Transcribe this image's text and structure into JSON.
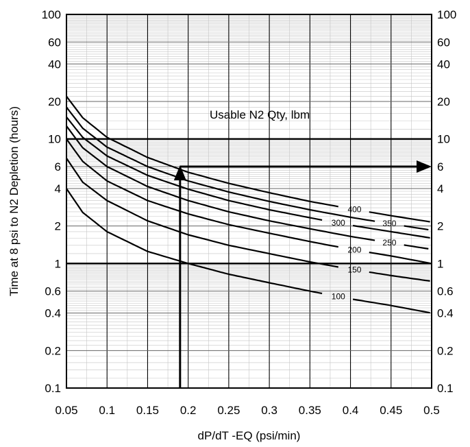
{
  "chart_data": {
    "type": "line",
    "title": "",
    "xlabel": "dP/dT -EQ (psi/min)",
    "ylabel": "Time at 8 psi to N2 Depletion (hours)",
    "annotation": "Usable N2 Qty, lbm",
    "x_scale": "linear",
    "y_scale": "log",
    "xlim": [
      0.05,
      0.5
    ],
    "ylim": [
      0.1,
      100
    ],
    "x_ticks": [
      "0.05",
      "0.1",
      "0.15",
      "0.2",
      "0.25",
      "0.3",
      "0.35",
      "0.4",
      "0.45",
      "0.5"
    ],
    "y_ticks": [
      "0.1",
      "0.2",
      "0.4",
      "0.6",
      "1",
      "2",
      "4",
      "6",
      "10",
      "20",
      "40",
      "60",
      "100"
    ],
    "grid": true,
    "series": [
      {
        "name": "100",
        "x": [
          0.05,
          0.07,
          0.1,
          0.15,
          0.2,
          0.25,
          0.3,
          0.35,
          0.4,
          0.45,
          0.5
        ],
        "y": [
          4.0,
          2.57,
          1.8,
          1.25,
          1.0,
          0.82,
          0.7,
          0.6,
          0.52,
          0.46,
          0.4
        ]
      },
      {
        "name": "150",
        "x": [
          0.05,
          0.07,
          0.1,
          0.15,
          0.2,
          0.25,
          0.3,
          0.35,
          0.4,
          0.45,
          0.5
        ],
        "y": [
          7.0,
          4.5,
          3.2,
          2.2,
          1.7,
          1.4,
          1.2,
          1.03,
          0.9,
          0.8,
          0.72
        ]
      },
      {
        "name": "200",
        "x": [
          0.05,
          0.07,
          0.1,
          0.15,
          0.2,
          0.25,
          0.3,
          0.35,
          0.4,
          0.45,
          0.5
        ],
        "y": [
          10.0,
          6.6,
          4.6,
          3.2,
          2.5,
          2.05,
          1.75,
          1.5,
          1.3,
          1.15,
          1.0
        ]
      },
      {
        "name": "250",
        "x": [
          0.05,
          0.07,
          0.1,
          0.15,
          0.2,
          0.25,
          0.3,
          0.35,
          0.4,
          0.45,
          0.5
        ],
        "y": [
          12.7,
          8.5,
          6.0,
          4.15,
          3.2,
          2.6,
          2.2,
          1.9,
          1.65,
          1.46,
          1.3
        ]
      },
      {
        "name": "300",
        "x": [
          0.05,
          0.07,
          0.1,
          0.15,
          0.2,
          0.25,
          0.3,
          0.35,
          0.4,
          0.45,
          0.5
        ],
        "y": [
          15.0,
          10.3,
          7.3,
          5.1,
          3.95,
          3.2,
          2.7,
          2.33,
          2.03,
          1.8,
          1.6
        ]
      },
      {
        "name": "350",
        "x": [
          0.05,
          0.07,
          0.1,
          0.15,
          0.2,
          0.25,
          0.3,
          0.35,
          0.4,
          0.45,
          0.5
        ],
        "y": [
          18.0,
          12.2,
          8.6,
          6.0,
          4.6,
          3.75,
          3.15,
          2.7,
          2.35,
          2.08,
          1.85
        ]
      },
      {
        "name": "400",
        "x": [
          0.05,
          0.07,
          0.1,
          0.15,
          0.2,
          0.25,
          0.3,
          0.35,
          0.4,
          0.45,
          0.5
        ],
        "y": [
          22.0,
          14.8,
          10.3,
          7.1,
          5.4,
          4.4,
          3.7,
          3.15,
          2.75,
          2.42,
          2.15
        ]
      }
    ],
    "reference_lines": {
      "horizontal": [
        1,
        10
      ]
    },
    "example_path": {
      "x": 0.19,
      "y": 6,
      "x_end": 0.5
    }
  }
}
